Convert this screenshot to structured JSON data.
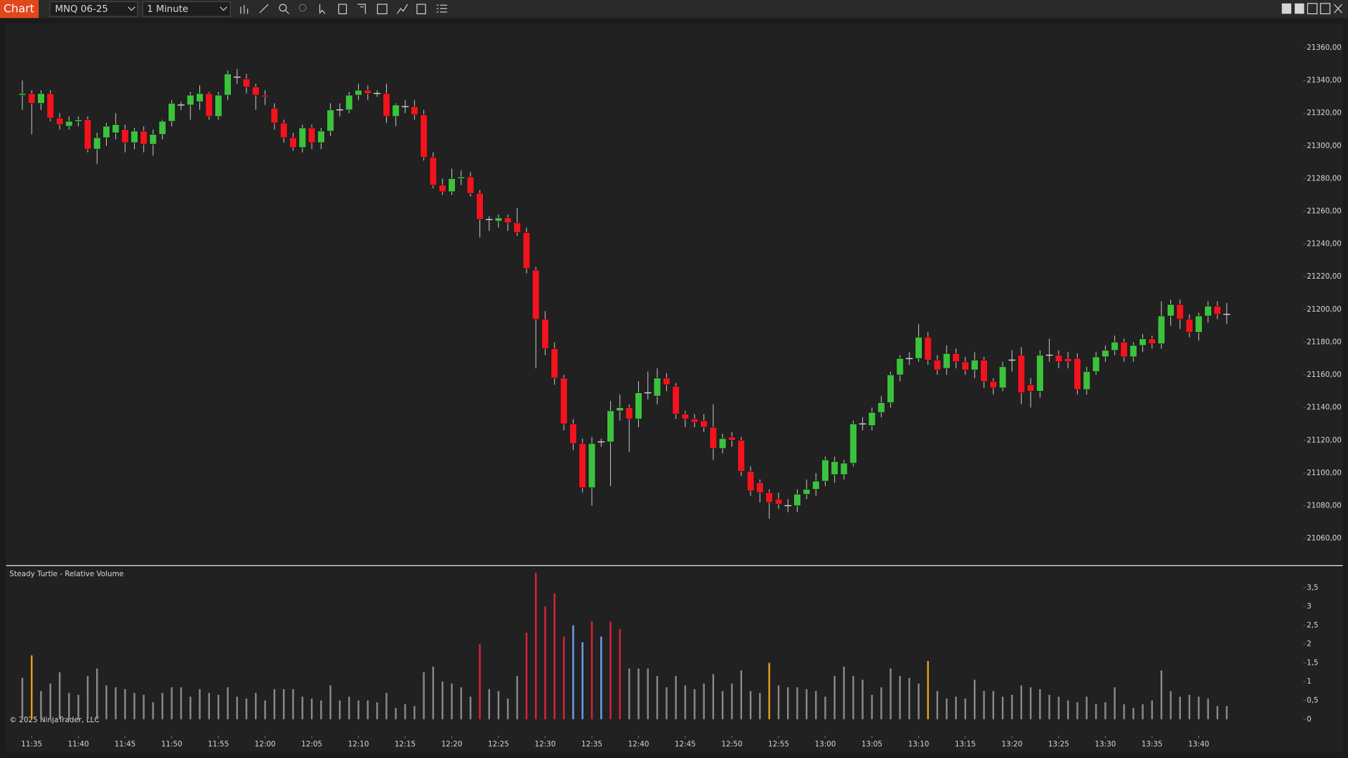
{
  "toolbar": {
    "tab": "Chart",
    "instrument": "MNQ 06-25",
    "interval": "1 Minute"
  },
  "copyright": "© 2025 NinjaTrader, LLC",
  "chart_data": [
    {
      "type": "candlestick",
      "up_color": "#3cc23c",
      "down_color": "#f0141e",
      "doji_color": "#d0d0d0",
      "ylim": [
        21045,
        21375
      ],
      "yticks": [
        {
          "value": 21060,
          "label": "21060,00"
        },
        {
          "value": 21080,
          "label": "21080,00"
        },
        {
          "value": 21100,
          "label": "21100,00"
        },
        {
          "value": 21120,
          "label": "21120,00"
        },
        {
          "value": 21140,
          "label": "21140,00"
        },
        {
          "value": 21160,
          "label": "21160,00"
        },
        {
          "value": 21180,
          "label": "21180,00"
        },
        {
          "value": 21200,
          "label": "21200,00"
        },
        {
          "value": 21220,
          "label": "21220,00"
        },
        {
          "value": 21240,
          "label": "21240,00"
        },
        {
          "value": 21260,
          "label": "21260,00"
        },
        {
          "value": 21280,
          "label": "21280,00"
        },
        {
          "value": 21300,
          "label": "21300,00"
        },
        {
          "value": 21320,
          "label": "21320,00"
        },
        {
          "value": 21340,
          "label": "21340,00"
        },
        {
          "value": 21360,
          "label": "21360,00"
        }
      ],
      "ohlc": [
        [
          21331,
          21340,
          21322,
          21332
        ],
        [
          21332,
          21334,
          21307,
          21326
        ],
        [
          21326,
          21334,
          21322,
          21332
        ],
        [
          21332,
          21334,
          21315,
          21317
        ],
        [
          21317,
          21320,
          21310,
          21313
        ],
        [
          21312,
          21318,
          21310,
          21315
        ],
        [
          21315,
          21318,
          21312,
          21316
        ],
        [
          21316,
          21318,
          21296,
          21298
        ],
        [
          21298,
          21308,
          21289,
          21305
        ],
        [
          21305,
          21314,
          21300,
          21312
        ],
        [
          21308,
          21320,
          21304,
          21313
        ],
        [
          21310,
          21313,
          21296,
          21302
        ],
        [
          21302,
          21311,
          21298,
          21309
        ],
        [
          21309,
          21312,
          21296,
          21301
        ],
        [
          21301,
          21310,
          21294,
          21307
        ],
        [
          21307,
          21316,
          21304,
          21315
        ],
        [
          21315,
          21328,
          21312,
          21326
        ],
        [
          21325,
          21327,
          21322,
          21325
        ],
        [
          21325,
          21333,
          21316,
          21331
        ],
        [
          21327,
          21337,
          21322,
          21332
        ],
        [
          21332,
          21333,
          21316,
          21318
        ],
        [
          21318,
          21333,
          21316,
          21331
        ],
        [
          21331,
          21346,
          21328,
          21344
        ],
        [
          21342,
          21347,
          21338,
          21342
        ],
        [
          21341,
          21344,
          21332,
          21336
        ],
        [
          21336,
          21338,
          21322,
          21331
        ],
        [
          21331,
          21334,
          21325,
          21330
        ],
        [
          21323,
          21326,
          21310,
          21314
        ],
        [
          21314,
          21316,
          21302,
          21305
        ],
        [
          21305,
          21308,
          21297,
          21299
        ],
        [
          21299,
          21313,
          21296,
          21311
        ],
        [
          21311,
          21313,
          21298,
          21302
        ],
        [
          21302,
          21311,
          21298,
          21309
        ],
        [
          21309,
          21326,
          21306,
          21322
        ],
        [
          21322,
          21326,
          21318,
          21322
        ],
        [
          21322,
          21333,
          21320,
          21331
        ],
        [
          21331,
          21338,
          21328,
          21334
        ],
        [
          21334,
          21337,
          21328,
          21332
        ],
        [
          21332,
          21334,
          21330,
          21332
        ],
        [
          21332,
          21338,
          21314,
          21318
        ],
        [
          21318,
          21326,
          21312,
          21325
        ],
        [
          21324,
          21328,
          21320,
          21324
        ],
        [
          21324,
          21328,
          21316,
          21319
        ],
        [
          21319,
          21322,
          21291,
          21293
        ],
        [
          21293,
          21296,
          21274,
          21276
        ],
        [
          21276,
          21280,
          21270,
          21272
        ],
        [
          21272,
          21286,
          21270,
          21280
        ],
        [
          21280,
          21285,
          21276,
          21281
        ],
        [
          21281,
          21284,
          21269,
          21271
        ],
        [
          21271,
          21273,
          21244,
          21255
        ],
        [
          21255,
          21257,
          21248,
          21255
        ],
        [
          21254,
          21258,
          21250,
          21256
        ],
        [
          21256,
          21258,
          21248,
          21253
        ],
        [
          21253,
          21262,
          21245,
          21247
        ],
        [
          21247,
          21250,
          21222,
          21225
        ],
        [
          21224,
          21226,
          21164,
          21194
        ],
        [
          21194,
          21199,
          21172,
          21176
        ],
        [
          21176,
          21180,
          21154,
          21158
        ],
        [
          21158,
          21160,
          21126,
          21130
        ],
        [
          21130,
          21133,
          21114,
          21118
        ],
        [
          21118,
          21121,
          21088,
          21091
        ],
        [
          21091,
          21122,
          21080,
          21118
        ],
        [
          21119,
          21121,
          21116,
          21119
        ],
        [
          21119,
          21144,
          21092,
          21138
        ],
        [
          21138,
          21148,
          21132,
          21140
        ],
        [
          21140,
          21142,
          21113,
          21133
        ],
        [
          21133,
          21156,
          21128,
          21149
        ],
        [
          21149,
          21162,
          21145,
          21149
        ],
        [
          21147,
          21164,
          21142,
          21158
        ],
        [
          21158,
          21161,
          21150,
          21154
        ],
        [
          21153,
          21155,
          21133,
          21136
        ],
        [
          21136,
          21138,
          21128,
          21133
        ],
        [
          21133,
          21136,
          21128,
          21131
        ],
        [
          21132,
          21136,
          21125,
          21128
        ],
        [
          21128,
          21142,
          21108,
          21115
        ],
        [
          21115,
          21124,
          21112,
          21121
        ],
        [
          21122,
          21125,
          21116,
          21120
        ],
        [
          21120,
          21122,
          21098,
          21101
        ],
        [
          21101,
          21104,
          21086,
          21089
        ],
        [
          21094,
          21096,
          21082,
          21088
        ],
        [
          21088,
          21090,
          21072,
          21082
        ],
        [
          21084,
          21088,
          21078,
          21081
        ],
        [
          21080,
          21084,
          21076,
          21080
        ],
        [
          21080,
          21090,
          21076,
          21087
        ],
        [
          21087,
          21096,
          21084,
          21090
        ],
        [
          21090,
          21100,
          21086,
          21095
        ],
        [
          21095,
          21110,
          21092,
          21108
        ],
        [
          21099,
          21110,
          21094,
          21107
        ],
        [
          21099,
          21108,
          21096,
          21106
        ],
        [
          21106,
          21132,
          21104,
          21130
        ],
        [
          21130,
          21134,
          21126,
          21130
        ],
        [
          21129,
          21140,
          21126,
          21137
        ],
        [
          21137,
          21147,
          21134,
          21143
        ],
        [
          21143,
          21162,
          21140,
          21160
        ],
        [
          21160,
          21172,
          21156,
          21170
        ],
        [
          21170,
          21174,
          21166,
          21170
        ],
        [
          21170,
          21191,
          21168,
          21183
        ],
        [
          21183,
          21186,
          21166,
          21169
        ],
        [
          21169,
          21172,
          21160,
          21163
        ],
        [
          21164,
          21178,
          21160,
          21173
        ],
        [
          21173,
          21176,
          21164,
          21168
        ],
        [
          21168,
          21171,
          21160,
          21163
        ],
        [
          21163,
          21174,
          21158,
          21169
        ],
        [
          21169,
          21171,
          21152,
          21156
        ],
        [
          21156,
          21158,
          21148,
          21152
        ],
        [
          21152,
          21168,
          21150,
          21165
        ],
        [
          21169,
          21175,
          21162,
          21169
        ],
        [
          21172,
          21177,
          21142,
          21149
        ],
        [
          21154,
          21158,
          21140,
          21150
        ],
        [
          21150,
          21175,
          21146,
          21172
        ],
        [
          21172,
          21182,
          21168,
          21172
        ],
        [
          21172,
          21175,
          21164,
          21168
        ],
        [
          21170,
          21174,
          21164,
          21168
        ],
        [
          21170,
          21173,
          21148,
          21151
        ],
        [
          21151,
          21165,
          21148,
          21162
        ],
        [
          21162,
          21174,
          21160,
          21171
        ],
        [
          21171,
          21178,
          21168,
          21175
        ],
        [
          21175,
          21184,
          21172,
          21180
        ],
        [
          21180,
          21182,
          21168,
          21171
        ],
        [
          21171,
          21180,
          21168,
          21178
        ],
        [
          21178,
          21185,
          21174,
          21182
        ],
        [
          21182,
          21184,
          21176,
          21179
        ],
        [
          21179,
          21205,
          21176,
          21196
        ],
        [
          21196,
          21206,
          21190,
          21203
        ],
        [
          21203,
          21206,
          21188,
          21194
        ],
        [
          21194,
          21197,
          21183,
          21186
        ],
        [
          21186,
          21198,
          21181,
          21196
        ],
        [
          21196,
          21205,
          21192,
          21202
        ],
        [
          21202,
          21205,
          21194,
          21197
        ],
        [
          21197,
          21204,
          21191,
          21197
        ]
      ]
    },
    {
      "type": "bar",
      "title": "Steady Turtle - Relative Volume",
      "color": "#8a8a8a",
      "highlights": [
        {
          "index": 1,
          "color": "#e8a020"
        },
        {
          "index": 49,
          "color": "#e0203a"
        },
        {
          "index": 54,
          "color": "#e0203a"
        },
        {
          "index": 55,
          "color": "#e0203a"
        },
        {
          "index": 56,
          "color": "#e0203a"
        },
        {
          "index": 57,
          "color": "#e0203a"
        },
        {
          "index": 58,
          "color": "#e0203a"
        },
        {
          "index": 59,
          "color": "#6fa0ee"
        },
        {
          "index": 60,
          "color": "#6fa0ee"
        },
        {
          "index": 61,
          "color": "#e0203a"
        },
        {
          "index": 62,
          "color": "#6fa0ee"
        },
        {
          "index": 63,
          "color": "#e0203a"
        },
        {
          "index": 64,
          "color": "#e0203a"
        },
        {
          "index": 80,
          "color": "#e8a020"
        },
        {
          "index": 97,
          "color": "#e8a020"
        }
      ],
      "ylim": [
        -0.3,
        4.0
      ],
      "yticks": [
        0,
        {
          "value": 0.5,
          "label": "0,5"
        },
        1,
        {
          "value": 1.5,
          "label": "1,5"
        },
        2,
        {
          "value": 2.5,
          "label": "2,5"
        },
        3,
        {
          "value": 3.5,
          "label": "3,5"
        }
      ],
      "categories": [
        null,
        "11:35",
        null,
        null,
        null,
        null,
        "11:40",
        null,
        null,
        null,
        null,
        "11:45",
        null,
        null,
        null,
        null,
        "11:50",
        null,
        null,
        null,
        null,
        "11:55",
        null,
        null,
        null,
        null,
        "12:00",
        null,
        null,
        null,
        null,
        "12:05",
        null,
        null,
        null,
        null,
        "12:10",
        null,
        null,
        null,
        null,
        "12:15",
        null,
        null,
        null,
        null,
        "12:20",
        null,
        null,
        null,
        null,
        "12:25",
        null,
        null,
        null,
        null,
        "12:30",
        null,
        null,
        null,
        null,
        "12:35",
        null,
        null,
        null,
        null,
        "12:40",
        null,
        null,
        null,
        null,
        "12:45",
        null,
        null,
        null,
        null,
        "12:50",
        null,
        null,
        null,
        null,
        "12:55",
        null,
        null,
        null,
        null,
        "13:00",
        null,
        null,
        null,
        null,
        "13:05",
        null,
        null,
        null,
        null,
        "13:10",
        null,
        null,
        null,
        null,
        "13:15",
        null,
        null,
        null,
        null,
        "13:20",
        null,
        null,
        null,
        null,
        "13:25",
        null,
        null,
        null,
        null,
        "13:30",
        null,
        null,
        null,
        null,
        "13:35",
        null,
        null,
        null,
        null,
        "13:40",
        null,
        null,
        null
      ],
      "values": [
        1.1,
        1.7,
        0.75,
        0.95,
        1.25,
        0.7,
        0.65,
        1.15,
        1.35,
        0.9,
        0.85,
        0.8,
        0.7,
        0.65,
        0.45,
        0.7,
        0.85,
        0.85,
        0.6,
        0.8,
        0.7,
        0.65,
        0.85,
        0.6,
        0.55,
        0.7,
        0.5,
        0.8,
        0.8,
        0.8,
        0.6,
        0.55,
        0.5,
        0.9,
        0.5,
        0.6,
        0.5,
        0.5,
        0.45,
        0.7,
        0.3,
        0.4,
        0.35,
        1.25,
        1.4,
        1.0,
        0.95,
        0.85,
        0.6,
        2.0,
        0.8,
        0.75,
        0.55,
        1.15,
        2.3,
        3.9,
        3.0,
        3.35,
        2.2,
        2.5,
        2.05,
        2.6,
        2.2,
        2.6,
        2.4,
        1.35,
        1.35,
        1.35,
        1.15,
        0.85,
        1.15,
        0.9,
        0.8,
        0.95,
        1.2,
        0.75,
        0.95,
        1.3,
        0.75,
        0.7,
        1.5,
        0.9,
        0.85,
        0.85,
        0.8,
        0.75,
        0.6,
        1.15,
        1.4,
        1.15,
        1.05,
        0.65,
        0.85,
        1.35,
        1.15,
        1.1,
        0.95,
        1.55,
        0.75,
        0.55,
        0.6,
        0.55,
        1.05,
        0.75,
        0.75,
        0.6,
        0.65,
        0.9,
        0.85,
        0.8,
        0.65,
        0.6,
        0.5,
        0.45,
        0.6,
        0.4,
        0.45,
        0.85,
        0.4,
        0.3,
        0.4,
        0.5,
        1.3,
        0.75,
        0.6,
        0.65,
        0.6,
        0.55,
        0.35,
        0.35
      ]
    }
  ]
}
